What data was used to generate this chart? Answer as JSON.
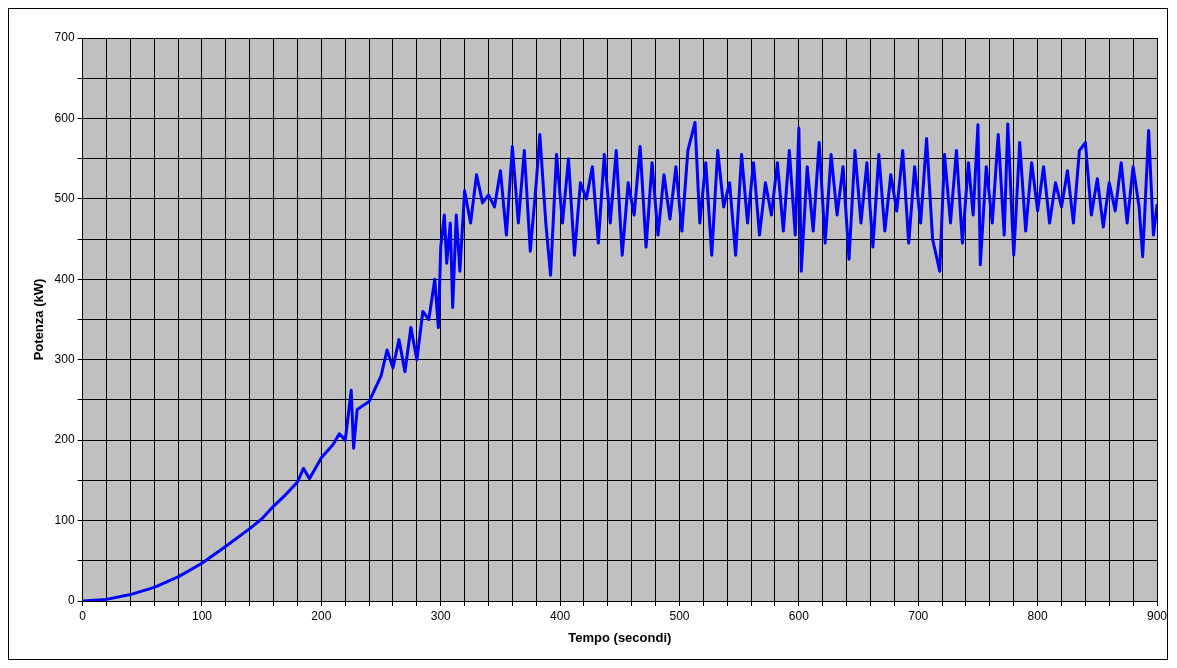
{
  "chart_data": {
    "type": "line",
    "xlabel": "Tempo (secondi)",
    "ylabel": "Potenza (kW)",
    "xlim": [
      0,
      900
    ],
    "ylim": [
      0,
      700
    ],
    "xticks": [
      0,
      {
        "value": 20,
        "label": null
      },
      {
        "value": 40,
        "label": null
      },
      {
        "value": 60,
        "label": null
      },
      {
        "value": 80,
        "label": null
      },
      100,
      {
        "value": 120,
        "label": null
      },
      {
        "value": 140,
        "label": null
      },
      {
        "value": 160,
        "label": null
      },
      {
        "value": 180,
        "label": null
      },
      200,
      {
        "value": 220,
        "label": null
      },
      {
        "value": 240,
        "label": null
      },
      {
        "value": 260,
        "label": null
      },
      {
        "value": 280,
        "label": null
      },
      300,
      {
        "value": 320,
        "label": null
      },
      {
        "value": 340,
        "label": null
      },
      {
        "value": 360,
        "label": null
      },
      {
        "value": 380,
        "label": null
      },
      400,
      {
        "value": 420,
        "label": null
      },
      {
        "value": 440,
        "label": null
      },
      {
        "value": 460,
        "label": null
      },
      {
        "value": 480,
        "label": null
      },
      500,
      {
        "value": 520,
        "label": null
      },
      {
        "value": 540,
        "label": null
      },
      {
        "value": 560,
        "label": null
      },
      {
        "value": 580,
        "label": null
      },
      600,
      {
        "value": 620,
        "label": null
      },
      {
        "value": 640,
        "label": null
      },
      {
        "value": 660,
        "label": null
      },
      {
        "value": 680,
        "label": null
      },
      700,
      {
        "value": 720,
        "label": null
      },
      {
        "value": 740,
        "label": null
      },
      {
        "value": 760,
        "label": null
      },
      {
        "value": 780,
        "label": null
      },
      800,
      {
        "value": 820,
        "label": null
      },
      {
        "value": 840,
        "label": null
      },
      {
        "value": 860,
        "label": null
      },
      {
        "value": 880,
        "label": null
      },
      900
    ],
    "yticks": [
      0,
      {
        "value": 50,
        "label": null
      },
      100,
      {
        "value": 150,
        "label": null
      },
      200,
      {
        "value": 250,
        "label": null
      },
      300,
      {
        "value": 350,
        "label": null
      },
      400,
      {
        "value": 450,
        "label": null
      },
      500,
      {
        "value": 550,
        "label": null
      },
      600,
      {
        "value": 650,
        "label": null
      },
      700
    ],
    "grid": true,
    "legend": false,
    "marker": "none",
    "line_style": "solid",
    "series": [
      {
        "color": "#0000ff",
        "x": [
          0,
          20,
          40,
          60,
          80,
          100,
          120,
          140,
          150,
          160,
          170,
          180,
          185,
          190,
          200,
          210,
          215,
          220,
          225,
          227,
          230,
          240,
          250,
          255,
          260,
          265,
          270,
          275,
          280,
          285,
          290,
          295,
          298,
          300,
          303,
          305,
          308,
          310,
          313,
          316,
          320,
          325,
          330,
          335,
          340,
          345,
          350,
          355,
          360,
          365,
          370,
          375,
          380,
          383,
          388,
          392,
          397,
          402,
          407,
          412,
          417,
          422,
          427,
          432,
          437,
          442,
          447,
          452,
          457,
          462,
          467,
          472,
          477,
          482,
          487,
          492,
          497,
          502,
          507,
          513,
          517,
          522,
          527,
          532,
          537,
          542,
          547,
          552,
          557,
          562,
          567,
          572,
          577,
          582,
          587,
          592,
          597,
          600,
          602,
          607,
          612,
          617,
          622,
          627,
          632,
          637,
          642,
          647,
          652,
          657,
          662,
          667,
          672,
          677,
          682,
          687,
          692,
          697,
          702,
          707,
          712,
          718,
          722,
          727,
          732,
          737,
          742,
          746,
          750,
          752,
          757,
          762,
          767,
          772,
          775,
          780,
          785,
          790,
          795,
          800,
          805,
          810,
          815,
          820,
          825,
          830,
          835,
          840,
          845,
          850,
          855,
          860,
          865,
          870,
          875,
          880,
          885,
          888,
          893,
          897,
          900
        ],
        "values": [
          0,
          2,
          8,
          17,
          30,
          47,
          68,
          90,
          102,
          118,
          132,
          148,
          165,
          152,
          178,
          195,
          208,
          200,
          262,
          190,
          238,
          248,
          280,
          312,
          290,
          325,
          285,
          340,
          300,
          360,
          350,
          400,
          340,
          440,
          480,
          420,
          470,
          365,
          480,
          410,
          510,
          470,
          530,
          495,
          505,
          490,
          535,
          455,
          565,
          470,
          560,
          435,
          520,
          580,
          470,
          405,
          555,
          470,
          550,
          430,
          520,
          500,
          540,
          445,
          555,
          470,
          560,
          430,
          520,
          480,
          565,
          440,
          545,
          455,
          530,
          475,
          540,
          460,
          560,
          595,
          470,
          545,
          430,
          560,
          490,
          520,
          430,
          555,
          470,
          545,
          455,
          520,
          480,
          545,
          460,
          560,
          455,
          588,
          410,
          540,
          460,
          570,
          445,
          555,
          480,
          540,
          425,
          560,
          470,
          545,
          440,
          555,
          460,
          530,
          485,
          560,
          445,
          540,
          470,
          575,
          450,
          410,
          555,
          470,
          560,
          445,
          545,
          480,
          592,
          418,
          540,
          470,
          580,
          455,
          593,
          430,
          570,
          460,
          545,
          485,
          540,
          470,
          520,
          490,
          535,
          470,
          560,
          570,
          480,
          525,
          465,
          520,
          485,
          545,
          470,
          540,
          490,
          428,
          585,
          455,
          492
        ]
      }
    ]
  }
}
